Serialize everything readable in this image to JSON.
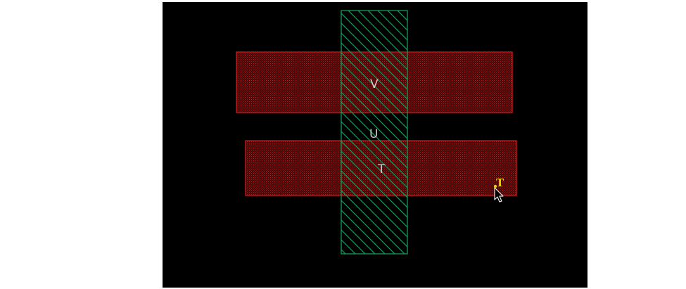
{
  "layout_editor": {
    "canvas": {
      "background_color": "#000000"
    },
    "layers": {
      "metal": {
        "outline_color": "#d01818",
        "fill_color": "#5a0a0a",
        "pattern": "dense-dot"
      },
      "diffusion": {
        "outline_color": "#1a9a5a",
        "pattern": "diagonal-hatch"
      }
    },
    "labels": {
      "v": "V",
      "u": "U",
      "t": "T",
      "active": "T"
    },
    "active_label_color": "#e6d200",
    "cursor": {
      "icon": "arrow-pointer-icon"
    }
  }
}
